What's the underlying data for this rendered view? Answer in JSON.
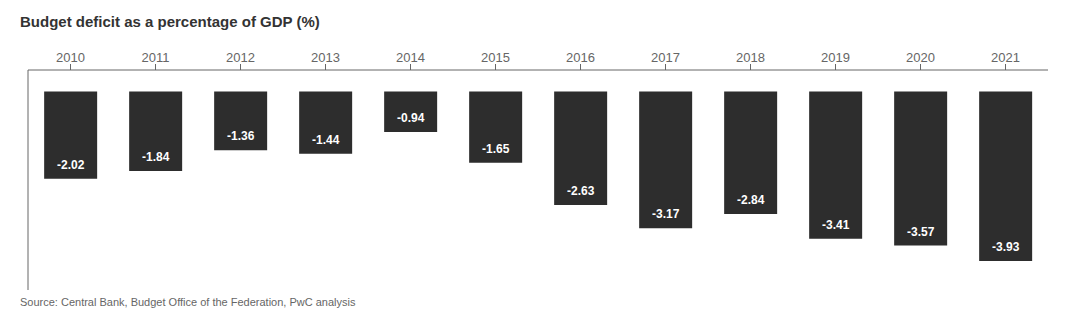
{
  "chart_data": {
    "type": "bar",
    "title": "Budget deficit as a percentage of GDP (%)",
    "categories": [
      "2010",
      "2011",
      "2012",
      "2013",
      "2014",
      "2015",
      "2016",
      "2017",
      "2018",
      "2019",
      "2020",
      "2021"
    ],
    "values": [
      -2.02,
      -1.84,
      -1.36,
      -1.44,
      -0.94,
      -1.65,
      -2.63,
      -3.17,
      -2.84,
      -3.41,
      -3.57,
      -3.93
    ],
    "color": "#2d2d2d",
    "ylim": [
      -4.6,
      0.5
    ],
    "data_labels": true,
    "tick_labels": "x",
    "grid": false,
    "source": "Source: Central Bank, Budget Office of the Federation, PwC analysis"
  }
}
